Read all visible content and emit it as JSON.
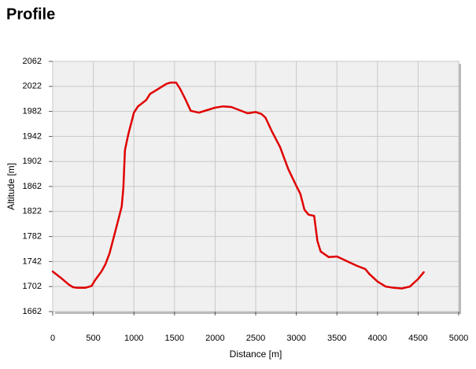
{
  "chart_data": {
    "type": "line",
    "title": "Profile",
    "x_label": "Distance [m]",
    "y_label": "Altitude [m]",
    "x": [
      0,
      100,
      200,
      250,
      300,
      400,
      480,
      520,
      600,
      650,
      700,
      750,
      800,
      850,
      870,
      890,
      930,
      1000,
      1050,
      1150,
      1200,
      1300,
      1400,
      1450,
      1520,
      1570,
      1640,
      1700,
      1800,
      1900,
      2000,
      2100,
      2200,
      2300,
      2400,
      2500,
      2570,
      2620,
      2700,
      2800,
      2900,
      3000,
      3050,
      3100,
      3150,
      3220,
      3260,
      3300,
      3400,
      3500,
      3550,
      3650,
      3750,
      3850,
      3900,
      4000,
      4100,
      4200,
      4300,
      4400,
      4450,
      4500,
      4570
    ],
    "values": [
      1726,
      1716,
      1705,
      1701,
      1700,
      1700,
      1703,
      1712,
      1726,
      1738,
      1755,
      1780,
      1805,
      1830,
      1860,
      1920,
      1945,
      1980,
      1990,
      2000,
      2010,
      2018,
      2026,
      2028,
      2028,
      2018,
      2000,
      1983,
      1980,
      1984,
      1988,
      1990,
      1989,
      1984,
      1979,
      1981,
      1978,
      1972,
      1950,
      1925,
      1890,
      1863,
      1850,
      1825,
      1817,
      1815,
      1775,
      1758,
      1749,
      1750,
      1747,
      1741,
      1735,
      1730,
      1722,
      1710,
      1702,
      1700,
      1699,
      1702,
      1708,
      1714,
      1725
    ],
    "color": "#e00000",
    "xlim": [
      0,
      5000
    ],
    "xticks": [
      0,
      500,
      1000,
      1500,
      2000,
      2500,
      3000,
      3500,
      4000,
      4500,
      5000
    ],
    "ylim": [
      1662,
      2062
    ],
    "yticks": [
      1662,
      1702,
      1742,
      1782,
      1822,
      1862,
      1902,
      1942,
      1982,
      2022,
      2062
    ],
    "grid": true
  }
}
